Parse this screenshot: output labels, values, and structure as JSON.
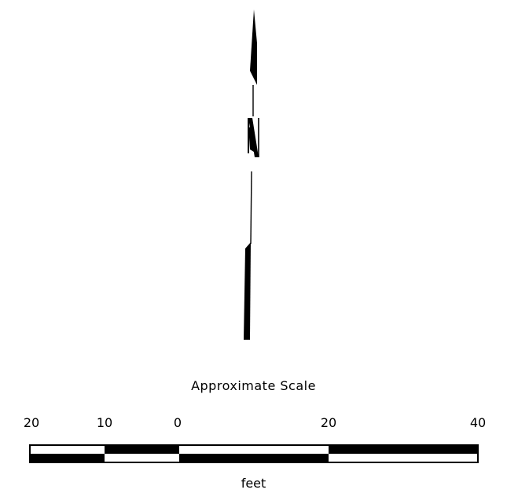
{
  "north_arrow": {
    "letter": "N",
    "icon": "north-arrow-icon"
  },
  "scale": {
    "title": "Approximate Scale",
    "unit": "feet",
    "tick_labels": [
      "20",
      "10",
      "0",
      "20",
      "40"
    ],
    "tick_values": [
      -20,
      -10,
      0,
      20,
      40
    ],
    "segments": [
      {
        "from": -20,
        "to": -10,
        "top": "white",
        "bottom": "black"
      },
      {
        "from": -10,
        "to": 0,
        "top": "black",
        "bottom": "white"
      },
      {
        "from": 0,
        "to": 20,
        "top": "white",
        "bottom": "black"
      },
      {
        "from": 20,
        "to": 40,
        "top": "black",
        "bottom": "white"
      }
    ],
    "colors": {
      "dark": "#000000",
      "light": "#ffffff"
    }
  }
}
